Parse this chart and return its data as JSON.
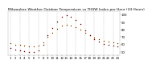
{
  "title": "Milwaukee Weather Outdoor Temperature vs THSW Index per Hour (24 Hours)",
  "hours": [
    1,
    2,
    3,
    4,
    5,
    6,
    7,
    8,
    9,
    10,
    11,
    12,
    13,
    14,
    15,
    16,
    17,
    18,
    19,
    20,
    21,
    22,
    23,
    24
  ],
  "temp": [
    62,
    60,
    59,
    58,
    57,
    57,
    58,
    63,
    70,
    76,
    81,
    85,
    86,
    85,
    83,
    80,
    76,
    72,
    69,
    67,
    65,
    64,
    63,
    62
  ],
  "thsw": [
    55,
    53,
    52,
    51,
    50,
    50,
    52,
    60,
    72,
    82,
    91,
    97,
    99,
    97,
    93,
    87,
    79,
    72,
    67,
    64,
    61,
    60,
    58,
    57
  ],
  "temp_color": "#ff8800",
  "thsw_color": "#cc0000",
  "black_color": "#111111",
  "grid_color": "#999999",
  "bg_color": "#ffffff",
  "ylim": [
    45,
    105
  ],
  "yticks": [
    50,
    60,
    70,
    80,
    90,
    100
  ],
  "title_fontsize": 3.2,
  "tick_fontsize": 2.8,
  "marker_size": 1.2,
  "grid_positions": [
    1,
    3,
    5,
    7,
    9,
    11,
    13,
    15,
    17,
    19,
    21,
    23
  ]
}
